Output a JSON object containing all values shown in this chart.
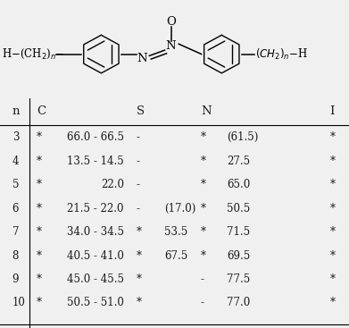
{
  "rows": [
    [
      "3",
      "*",
      "66.0 - 66.5",
      "-",
      "",
      "*",
      "(61.5)",
      "*"
    ],
    [
      "4",
      "*",
      "13.5 - 14.5",
      "-",
      "",
      "*",
      "27.5",
      "*"
    ],
    [
      "5",
      "*",
      "22.0",
      "-",
      "",
      "*",
      "65.0",
      "*"
    ],
    [
      "6",
      "*",
      "21.5 - 22.0",
      "-",
      "(17.0)",
      "*",
      "50.5",
      "*"
    ],
    [
      "7",
      "*",
      "34.0 - 34.5",
      "*",
      "53.5",
      "*",
      "71.5",
      "*"
    ],
    [
      "8",
      "*",
      "40.5 - 41.0",
      "*",
      "67.5",
      "*",
      "69.5",
      "*"
    ],
    [
      "9",
      "*",
      "45.0 - 45.5",
      "*",
      "",
      "-",
      "77.5",
      "*"
    ],
    [
      "10",
      "*",
      "50.5 - 51.0",
      "*",
      "",
      "-",
      "77.0",
      "*"
    ]
  ],
  "bg_color": "#f0f0f0",
  "text_color": "#1a1a1a",
  "fontsize": 8.5,
  "header_fontsize": 9.5,
  "struct_lw": 1.1,
  "ring_lw": 1.0,
  "struct_fs": 8.5
}
